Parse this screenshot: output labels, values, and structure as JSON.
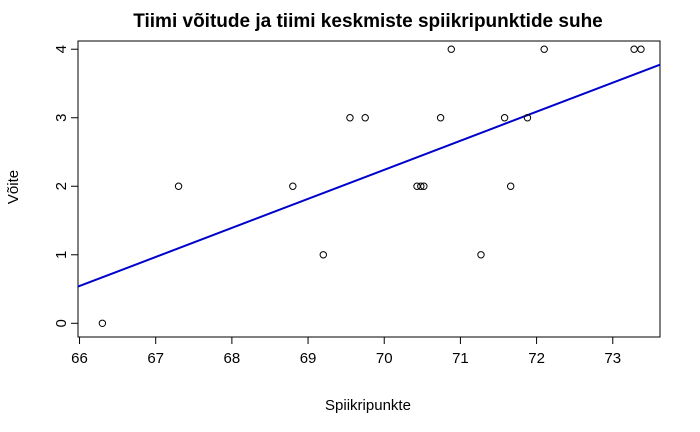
{
  "chart_data": {
    "type": "scatter",
    "title": "Tiimi võitude ja tiimi keskmiste spiikripunktide suhe",
    "xlabel": "Spiikripunkte",
    "ylabel": "Võite",
    "xlim": [
      65.98,
      73.62
    ],
    "ylim": [
      -0.2,
      4.12
    ],
    "xticks": [
      66,
      67,
      68,
      69,
      70,
      71,
      72,
      73
    ],
    "yticks": [
      0,
      1,
      2,
      3,
      4
    ],
    "grid": false,
    "legend": "none",
    "points": [
      {
        "x": 66.3,
        "y": 0
      },
      {
        "x": 67.3,
        "y": 2
      },
      {
        "x": 68.8,
        "y": 2
      },
      {
        "x": 69.2,
        "y": 1
      },
      {
        "x": 69.55,
        "y": 3
      },
      {
        "x": 69.75,
        "y": 3
      },
      {
        "x": 70.43,
        "y": 2
      },
      {
        "x": 70.48,
        "y": 2
      },
      {
        "x": 70.52,
        "y": 2
      },
      {
        "x": 70.74,
        "y": 3
      },
      {
        "x": 70.88,
        "y": 4
      },
      {
        "x": 71.27,
        "y": 1
      },
      {
        "x": 71.58,
        "y": 3
      },
      {
        "x": 71.66,
        "y": 2
      },
      {
        "x": 71.88,
        "y": 3
      },
      {
        "x": 72.1,
        "y": 4
      },
      {
        "x": 73.28,
        "y": 4
      },
      {
        "x": 73.37,
        "y": 4
      }
    ],
    "regression_line": {
      "intercept": -27.44,
      "slope": 0.424,
      "color": "#0000CC"
    },
    "colors": {
      "points": "#000000",
      "line": "#0000CC",
      "frame": "#000000"
    }
  }
}
